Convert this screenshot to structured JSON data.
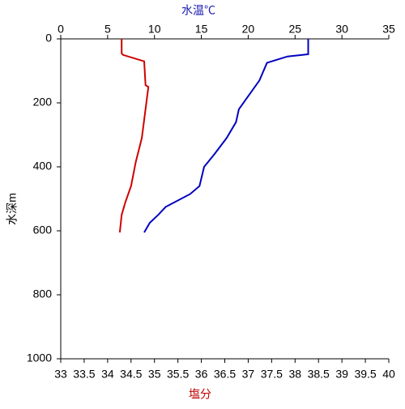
{
  "chart_data": {
    "type": "profile",
    "x_title": "塩分",
    "x2_title": "水温℃",
    "y_title": "水深m",
    "xlim": [
      33,
      40
    ],
    "xticks": [
      33,
      33.5,
      34,
      34.5,
      35,
      35.5,
      36,
      36.5,
      37,
      37.5,
      38,
      38.5,
      39,
      39.5,
      40
    ],
    "x2lim": [
      0,
      35
    ],
    "x2ticks": [
      0,
      5,
      10,
      15,
      20,
      25,
      30,
      35
    ],
    "ylim": [
      0,
      1000
    ],
    "yticks": [
      0,
      200,
      400,
      600,
      800,
      1000
    ],
    "y_inverted": true,
    "series": [
      {
        "color": "#0000c0",
        "axis": "x2",
        "values": [
          26.4,
          26.4,
          24.2,
          22,
          21.2,
          19,
          18.7,
          17.7,
          16.4,
          15.3,
          14.8,
          13.8,
          11.2,
          10.4,
          9.5,
          8.9
        ],
        "depth": [
          0,
          48,
          55,
          75,
          130,
          220,
          260,
          310,
          360,
          400,
          460,
          485,
          525,
          550,
          575,
          605
        ]
      },
      {
        "color": "#d00000",
        "values": [
          34.3,
          34.3,
          34.33,
          34.78,
          34.81,
          34.87,
          34.73,
          34.6,
          34.5,
          34.38,
          34.3,
          34.26
        ],
        "depth": [
          0,
          45,
          50,
          70,
          145,
          150,
          310,
          385,
          460,
          510,
          550,
          605
        ]
      }
    ]
  }
}
